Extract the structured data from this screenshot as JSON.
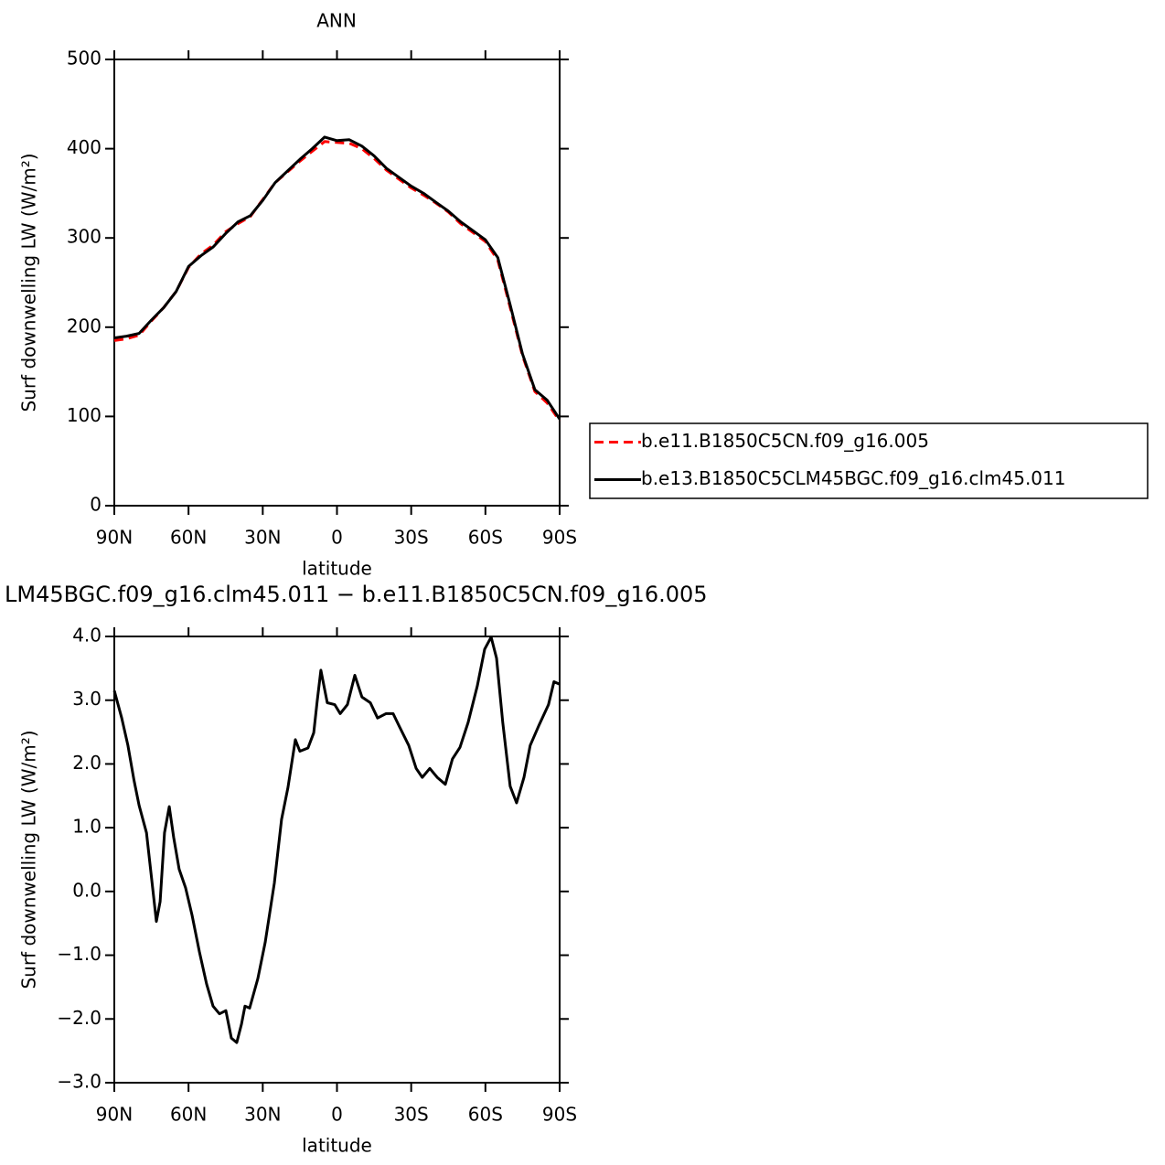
{
  "chart_data": [
    {
      "type": "line",
      "title": "ANN",
      "xlabel": "latitude",
      "ylabel": "Surf downwelling LW (W/m²)",
      "x": [
        90,
        85,
        80,
        75,
        70,
        65,
        60,
        55,
        50,
        45,
        40,
        35,
        30,
        25,
        20,
        15,
        10,
        5,
        0,
        -5,
        -10,
        -15,
        -20,
        -25,
        -30,
        -35,
        -40,
        -45,
        -50,
        -55,
        -60,
        -65,
        -70,
        -75,
        -80,
        -85,
        -90
      ],
      "series": [
        {
          "name": "b.e11.B1850C5CN.f09_g16.005",
          "color": "#ff0000",
          "dash": true,
          "values": [
            185,
            187,
            191,
            207,
            222,
            240,
            267,
            282,
            292,
            307,
            316,
            324,
            343,
            362,
            374,
            386,
            397,
            408,
            407,
            406,
            400,
            389,
            376,
            366,
            356,
            348,
            339,
            329,
            316,
            306,
            296,
            275,
            222,
            168,
            128,
            115,
            95
          ]
        },
        {
          "name": "b.e13.B1850C5CLM45BGC.f09_g16.clm45.011",
          "color": "#000000",
          "dash": false,
          "values": [
            188,
            190,
            193,
            208,
            222,
            240,
            268,
            280,
            290,
            305,
            318,
            325,
            342,
            362,
            375,
            388,
            400,
            413,
            409,
            410,
            403,
            392,
            378,
            368,
            358,
            350,
            340,
            330,
            318,
            308,
            298,
            278,
            225,
            170,
            130,
            118,
            97
          ]
        }
      ],
      "xlim": [
        90,
        -90
      ],
      "xticks": [
        {
          "value": 90,
          "label": "90N"
        },
        {
          "value": 60,
          "label": "60N"
        },
        {
          "value": 30,
          "label": "30N"
        },
        0,
        {
          "value": -30,
          "label": "30S"
        },
        {
          "value": -60,
          "label": "60S"
        },
        {
          "value": -90,
          "label": "90S"
        }
      ],
      "ylim": [
        0,
        500
      ],
      "yticks": [
        0,
        100,
        200,
        300,
        400,
        500
      ],
      "legend": "outside-right"
    },
    {
      "type": "line",
      "title": "LM45BGC.f09_g16.clm45.011 − b.e11.B1850C5CN.f09_g16.005",
      "xlabel": "latitude",
      "ylabel": "Surf downwelling LW (W/m²)",
      "x": [
        90,
        87,
        84.5,
        82,
        80,
        77,
        74.5,
        73,
        71.5,
        69.7,
        67.8,
        66,
        63.8,
        61.2,
        58.6,
        55.6,
        52.7,
        50.1,
        47.5,
        44.9,
        42.7,
        40.5,
        38.6,
        37.2,
        35.3,
        32,
        29,
        25.3,
        22.4,
        19.8,
        16.8,
        15,
        11.7,
        9.4,
        8,
        6.5,
        3.9,
        0.9,
        -1.3,
        -4.2,
        -7.2,
        -10.1,
        -13.5,
        -16.4,
        -19.8,
        -22.7,
        -25.3,
        -29,
        -32,
        -34.5,
        -37.5,
        -40.5,
        -43.8,
        -46.7,
        -49.7,
        -53,
        -56.7,
        -59.7,
        -62.3,
        -64.5,
        -67,
        -70,
        -72.6,
        -75.6,
        -78.1,
        -81.8,
        -85.5,
        -87.7,
        -90
      ],
      "color": "#000000",
      "values": [
        3.15,
        2.72,
        2.29,
        1.74,
        1.35,
        0.92,
        0.06,
        -0.47,
        -0.16,
        0.92,
        1.33,
        0.85,
        0.35,
        0.06,
        -0.37,
        -0.95,
        -1.45,
        -1.8,
        -1.92,
        -1.87,
        -2.3,
        -2.37,
        -2.08,
        -1.8,
        -1.83,
        -1.37,
        -0.8,
        0.13,
        1.13,
        1.63,
        2.38,
        2.2,
        2.25,
        2.49,
        2.99,
        3.47,
        2.96,
        2.93,
        2.79,
        2.93,
        3.39,
        3.05,
        2.96,
        2.72,
        2.79,
        2.79,
        2.58,
        2.29,
        1.93,
        1.79,
        1.93,
        1.79,
        1.68,
        2.08,
        2.26,
        2.65,
        3.22,
        3.8,
        3.99,
        3.66,
        2.65,
        1.65,
        1.39,
        1.79,
        2.29,
        2.62,
        2.93,
        3.29,
        3.25
      ],
      "xlim": [
        90,
        -90
      ],
      "xticks": [
        {
          "value": 90,
          "label": "90N"
        },
        {
          "value": 60,
          "label": "60N"
        },
        {
          "value": 30,
          "label": "30N"
        },
        0,
        {
          "value": -30,
          "label": "30S"
        },
        {
          "value": -60,
          "label": "60S"
        },
        {
          "value": -90,
          "label": "90S"
        }
      ],
      "ylim": [
        -3,
        4
      ],
      "yticks": [
        {
          "value": -3,
          "label": "−3.0"
        },
        {
          "value": -2,
          "label": "−2.0"
        },
        {
          "value": -1,
          "label": "−1.0"
        },
        {
          "value": 0,
          "label": "0.0"
        },
        {
          "value": 1,
          "label": "1.0"
        },
        {
          "value": 2,
          "label": "2.0"
        },
        {
          "value": 3,
          "label": "3.0"
        },
        {
          "value": 4,
          "label": "4.0"
        }
      ]
    }
  ]
}
